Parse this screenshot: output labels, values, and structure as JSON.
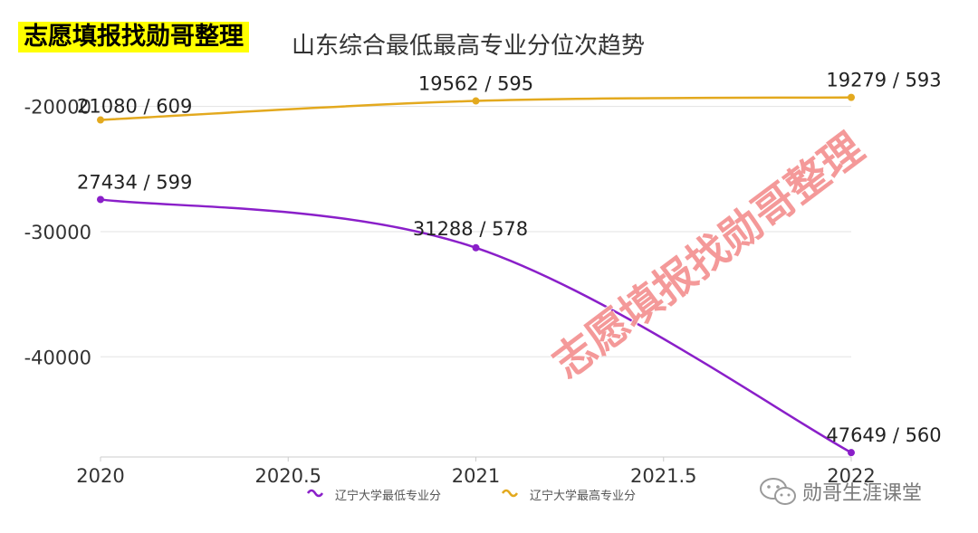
{
  "header": {
    "brand": "志愿填报找勋哥整理",
    "title": "山东综合最低最高专业分位次趋势"
  },
  "watermark": "志愿填报找勋哥整理",
  "footer": {
    "account_name": "勋哥生涯课堂",
    "icon": "wechat-icon"
  },
  "chart_data": {
    "type": "line",
    "title": "山东综合最低最高专业分位次趋势",
    "x": [
      2020,
      2021,
      2022
    ],
    "xlim": [
      2020,
      2022
    ],
    "xticks": [
      2020,
      2020.5,
      2021,
      2021.5,
      2022
    ],
    "xtick_labels": [
      "2020",
      "2020.5",
      "2021",
      "2021.5",
      "2022"
    ],
    "ylim": [
      -48000,
      -17500
    ],
    "yticks": [
      -20000,
      -30000,
      -40000
    ],
    "ytick_labels": [
      "-20000",
      "-30000",
      "-40000"
    ],
    "grid": true,
    "legend_position": "bottom-center",
    "series": [
      {
        "name": "辽宁大学最低专业分",
        "color": "#8a1fc9",
        "values": [
          -27434,
          -31288,
          -47649
        ],
        "labels": [
          "27434 / 599",
          "31288 / 578",
          "47649 / 560"
        ]
      },
      {
        "name": "辽宁大学最高专业分",
        "color": "#e3a91e",
        "values": [
          -21080,
          -19562,
          -19279
        ],
        "labels": [
          "21080 / 609",
          "19562 / 595",
          "19279 / 593"
        ]
      }
    ]
  }
}
